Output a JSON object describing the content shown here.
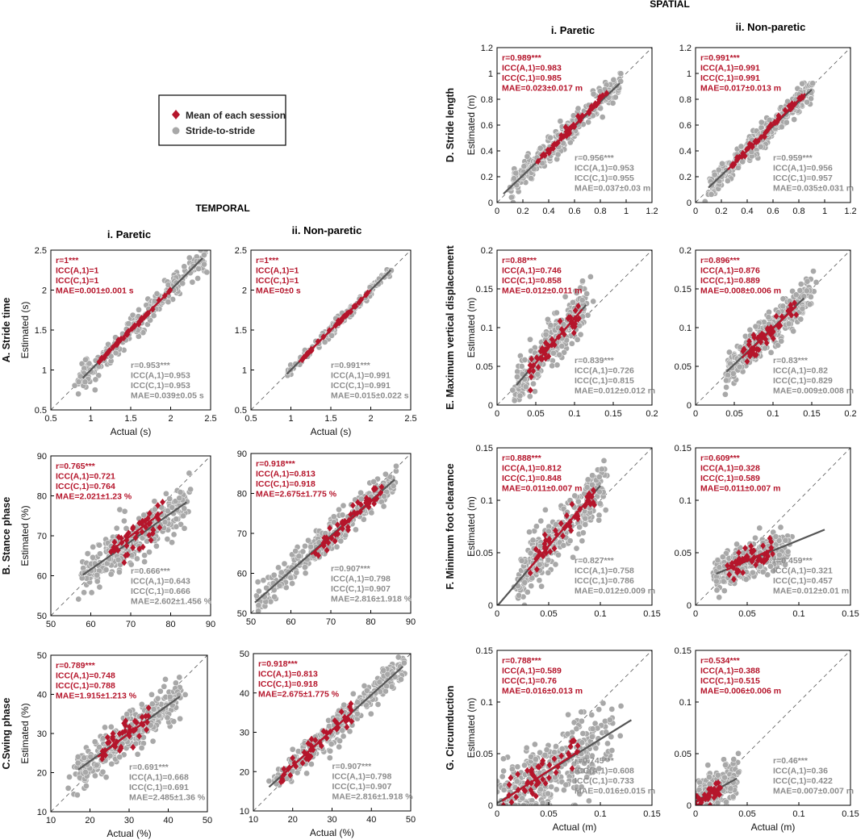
{
  "colors": {
    "mean": "#b5152b",
    "stride": "#a8a8a8",
    "stride_text": "#8c8c8c",
    "fit_line": "#555555",
    "identity": "#555555",
    "axis": "#000000"
  },
  "legend": {
    "mean_label": "Mean of each session",
    "stride_label": "Stride-to-stride"
  },
  "headers": {
    "temporal": "TEMPORAL",
    "spatial": "SPATIAL",
    "paretic": "i. Paretic",
    "non_paretic": "ii. Non-paretic"
  },
  "chart_data": [
    {
      "id": "A-paretic",
      "type": "scatter",
      "row_label": "A. Stride time",
      "xlabel": "Actual (s)",
      "ylabel": "Estimated (s)",
      "xlim": [
        0.5,
        2.5
      ],
      "ylim": [
        0.5,
        2.5
      ],
      "xticks": [
        "0.5",
        "1",
        "1.5",
        "2",
        "2.5"
      ],
      "yticks": [
        "0.5",
        "1",
        "1.5",
        "2",
        "2.5"
      ],
      "mean_stats": [
        "r=1***",
        "ICC(A,1)=1",
        "ICC(C,1)=1",
        "MAE=0.001±0.001 s"
      ],
      "stride_stats": [
        "r=0.953***",
        "ICC(A,1)=0.953",
        "ICC(C,1)=0.953",
        "MAE=0.039±0.05 s"
      ],
      "stride_fit": {
        "slope": 1.0,
        "intercept": 0.0,
        "x_range": [
          0.9,
          2.4
        ]
      },
      "mean_fit": {
        "slope": 1.0,
        "intercept": 0.0,
        "x_range": [
          1.1,
          2.0
        ]
      },
      "stride_cloud": {
        "x_range": [
          0.85,
          2.45
        ],
        "spread": 0.09,
        "n": 260
      },
      "mean_cloud": {
        "x_range": [
          1.1,
          2.0
        ],
        "spread": 0.01,
        "n": 45
      }
    },
    {
      "id": "A-nonparetic",
      "type": "scatter",
      "row_label": "",
      "xlabel": "Actual (s)",
      "ylabel": "",
      "xlim": [
        0.5,
        2.5
      ],
      "ylim": [
        0.5,
        2.5
      ],
      "xticks": [
        "0.5",
        "1",
        "1.5",
        "2",
        "2.5"
      ],
      "yticks": [
        "0.5",
        "1",
        "1.5",
        "2",
        "2.5"
      ],
      "mean_stats": [
        "r=1***",
        "ICC(A,1)=1",
        "ICC(C,1)=1",
        "MAE=0±0 s"
      ],
      "stride_stats": [
        "r=0.991***",
        "ICC(A,1)=0.991",
        "ICC(C,1)=0.991",
        "MAE=0.015±0.022 s"
      ],
      "stride_fit": {
        "slope": 1.0,
        "intercept": 0.0,
        "x_range": [
          0.95,
          2.25
        ]
      },
      "mean_fit": {
        "slope": 1.0,
        "intercept": 0.0,
        "x_range": [
          1.1,
          2.0
        ]
      },
      "stride_cloud": {
        "x_range": [
          0.95,
          2.25
        ],
        "spread": 0.04,
        "n": 140
      },
      "mean_cloud": {
        "x_range": [
          1.1,
          2.0
        ],
        "spread": 0.01,
        "n": 40
      }
    },
    {
      "id": "B-paretic",
      "type": "scatter",
      "row_label": "B. Stance phase",
      "xlabel": "",
      "ylabel": "Estimated (%)",
      "xlim": [
        50,
        90
      ],
      "ylim": [
        50,
        90
      ],
      "xticks": [
        "50",
        "60",
        "70",
        "80",
        "90"
      ],
      "yticks": [
        "50",
        "60",
        "70",
        "80",
        "90"
      ],
      "mean_stats": [
        "r=0.765***",
        "ICC(A,1)=0.721",
        "ICC(C,1)=0.764",
        "MAE=2.021±1.23 %"
      ],
      "stride_stats": [
        "r=0.666***",
        "ICC(A,1)=0.643",
        "ICC(C,1)=0.666",
        "MAE=2.602±1.456 %"
      ],
      "stride_fit": {
        "slope": 0.7,
        "intercept": 19.6,
        "x_range": [
          58,
          84
        ]
      },
      "mean_fit": {
        "slope": 0.75,
        "intercept": 17.5,
        "x_range": [
          65,
          78
        ]
      },
      "stride_cloud": {
        "x_range": [
          58,
          84
        ],
        "spread": 2.8,
        "n": 320
      },
      "mean_cloud": {
        "x_range": [
          65,
          78
        ],
        "spread": 2.0,
        "n": 45
      }
    },
    {
      "id": "B-nonparetic",
      "type": "scatter",
      "row_label": "",
      "xlabel": "",
      "ylabel": "",
      "xlim": [
        50,
        90
      ],
      "ylim": [
        50,
        90
      ],
      "xticks": [
        "50",
        "60",
        "70",
        "80",
        "90"
      ],
      "yticks": [
        "50",
        "60",
        "70",
        "80",
        "90"
      ],
      "mean_stats": [
        "r=0.918***",
        "ICC(A,1)=0.813",
        "ICC(C,1)=0.918",
        "MAE=2.675±1.775 %"
      ],
      "stride_stats": [
        "r=0.907***",
        "ICC(A,1)=0.798",
        "ICC(C,1)=0.907",
        "MAE=2.816±1.918 %"
      ],
      "stride_fit": {
        "slope": 0.88,
        "intercept": 7.8,
        "x_range": [
          51,
          86
        ]
      },
      "mean_fit": {
        "slope": 0.88,
        "intercept": 7.5,
        "x_range": [
          65,
          83
        ]
      },
      "stride_cloud": {
        "x_range": [
          52,
          86
        ],
        "spread": 2.2,
        "n": 300
      },
      "mean_cloud": {
        "x_range": [
          66,
          83
        ],
        "spread": 1.5,
        "n": 45
      }
    },
    {
      "id": "C-paretic",
      "type": "scatter",
      "row_label": "C.Swing phase",
      "xlabel": "Actual (%)",
      "ylabel": "Estimated (%)",
      "xlim": [
        10,
        50
      ],
      "ylim": [
        10,
        50
      ],
      "xticks": [
        "10",
        "20",
        "30",
        "40",
        "50"
      ],
      "yticks": [
        "10",
        "20",
        "30",
        "40",
        "50"
      ],
      "mean_stats": [
        "r=0.789***",
        "ICC(A,1)=0.748",
        "ICC(C,1)=0.788",
        "MAE=1.915±1.213 %"
      ],
      "stride_stats": [
        "r=0.691***",
        "ICC(A,1)=0.668",
        "ICC(C,1)=0.691",
        "MAE=2.485±1.36 %"
      ],
      "stride_fit": {
        "slope": 0.72,
        "intercept": 8.5,
        "x_range": [
          17,
          43
        ]
      },
      "mean_fit": {
        "slope": 0.75,
        "intercept": 7.5,
        "x_range": [
          22,
          34
        ]
      },
      "stride_cloud": {
        "x_range": [
          16,
          43
        ],
        "spread": 2.6,
        "n": 320
      },
      "mean_cloud": {
        "x_range": [
          22,
          35
        ],
        "spread": 2.0,
        "n": 45
      }
    },
    {
      "id": "C-nonparetic",
      "type": "scatter",
      "row_label": "",
      "xlabel": "Actual (%)",
      "ylabel": "",
      "xlim": [
        10,
        50
      ],
      "ylim": [
        10,
        50
      ],
      "xticks": [
        "10",
        "20",
        "30",
        "40",
        "50"
      ],
      "yticks": [
        "10",
        "20",
        "30",
        "40",
        "50"
      ],
      "mean_stats": [
        "r=0.918***",
        "ICC(A,1)=0.813",
        "ICC(C,1)=0.918",
        "MAE=2.675±1.775 %"
      ],
      "stride_stats": [
        "r=0.907***",
        "ICC(A,1)=0.798",
        "ICC(C,1)=0.907",
        "MAE=2.816±1.918 %"
      ],
      "stride_fit": {
        "slope": 0.9,
        "intercept": 3.5,
        "x_range": [
          14,
          48
        ]
      },
      "mean_fit": {
        "slope": 0.9,
        "intercept": 3.5,
        "x_range": [
          17,
          35
        ]
      },
      "stride_cloud": {
        "x_range": [
          15,
          48
        ],
        "spread": 2.0,
        "n": 300
      },
      "mean_cloud": {
        "x_range": [
          17,
          35
        ],
        "spread": 1.5,
        "n": 45
      }
    },
    {
      "id": "D-paretic",
      "type": "scatter",
      "row_label": "D. Stride length",
      "xlabel": "",
      "ylabel": "Estimated (m)",
      "xlim": [
        0,
        1.2
      ],
      "ylim": [
        0,
        1.2
      ],
      "xticks": [
        "0",
        "0.2",
        "0.4",
        "0.6",
        "0.8",
        "1",
        "1.2"
      ],
      "yticks": [
        "0",
        "0.2",
        "0.4",
        "0.6",
        "0.8",
        "1",
        "1.2"
      ],
      "mean_stats": [
        "r=0.989***",
        "ICC(A,1)=0.983",
        "ICC(C,1)=0.985",
        "MAE=0.023±0.017 m"
      ],
      "stride_stats": [
        "r=0.956***",
        "ICC(A,1)=0.953",
        "ICC(C,1)=0.955",
        "MAE=0.037±0.03 m"
      ],
      "stride_fit": {
        "slope": 0.95,
        "intercept": 0.02,
        "x_range": [
          0.05,
          0.95
        ]
      },
      "mean_fit": {
        "slope": 0.98,
        "intercept": 0.01,
        "x_range": [
          0.3,
          0.85
        ]
      },
      "stride_cloud": {
        "x_range": [
          0.1,
          0.95
        ],
        "spread": 0.05,
        "n": 320
      },
      "mean_cloud": {
        "x_range": [
          0.3,
          0.85
        ],
        "spread": 0.015,
        "n": 45
      }
    },
    {
      "id": "D-nonparetic",
      "type": "scatter",
      "row_label": "",
      "xlabel": "",
      "ylabel": "",
      "xlim": [
        0,
        1.2
      ],
      "ylim": [
        0,
        1.2
      ],
      "xticks": [
        "0",
        "0.2",
        "0.4",
        "0.6",
        "0.8",
        "1",
        "1.2"
      ],
      "yticks": [
        "0",
        "0.2",
        "0.4",
        "0.6",
        "0.8",
        "1",
        "1.2"
      ],
      "mean_stats": [
        "r=0.991***",
        "ICC(A,1)=0.991",
        "ICC(C,1)=0.991",
        "MAE=0.017±0.013 m"
      ],
      "stride_stats": [
        "r=0.959***",
        "ICC(A,1)=0.956",
        "ICC(C,1)=0.957",
        "MAE=0.035±0.031 m"
      ],
      "stride_fit": {
        "slope": 0.95,
        "intercept": 0.02,
        "x_range": [
          0.1,
          0.9
        ]
      },
      "mean_fit": {
        "slope": 0.98,
        "intercept": 0.01,
        "x_range": [
          0.25,
          0.85
        ]
      },
      "stride_cloud": {
        "x_range": [
          0.1,
          0.9
        ],
        "spread": 0.05,
        "n": 320
      },
      "mean_cloud": {
        "x_range": [
          0.25,
          0.85
        ],
        "spread": 0.015,
        "n": 45
      }
    },
    {
      "id": "E-paretic",
      "type": "scatter",
      "row_label": "E. Maximum vertical displacement",
      "xlabel": "",
      "ylabel": "Estimated (m)",
      "xlim": [
        0,
        0.2
      ],
      "ylim": [
        0,
        0.2
      ],
      "xticks": [
        "0",
        "0.05",
        "0.1",
        "0.15",
        "0.2"
      ],
      "yticks": [
        "0",
        "0.05",
        "0.1",
        "0.15",
        "0.2"
      ],
      "mean_stats": [
        "r=0.88***",
        "ICC(A,1)=0.746",
        "ICC(C,1)=0.858",
        "MAE=0.012±0.011 m"
      ],
      "stride_stats": [
        "r=0.839***",
        "ICC(A,1)=0.726",
        "ICC(C,1)=0.815",
        "MAE=0.012±0.012 m"
      ],
      "stride_fit": {
        "slope": 1.15,
        "intercept": -0.003,
        "x_range": [
          0.025,
          0.115
        ]
      },
      "mean_fit": {
        "slope": 1.15,
        "intercept": -0.003,
        "x_range": [
          0.04,
          0.11
        ]
      },
      "stride_cloud": {
        "x_range": [
          0.025,
          0.115
        ],
        "spread": 0.014,
        "n": 320
      },
      "mean_cloud": {
        "x_range": [
          0.04,
          0.11
        ],
        "spread": 0.008,
        "n": 45
      }
    },
    {
      "id": "E-nonparetic",
      "type": "scatter",
      "row_label": "",
      "xlabel": "",
      "ylabel": "",
      "xlim": [
        0,
        0.2
      ],
      "ylim": [
        0,
        0.2
      ],
      "xticks": [
        "0",
        "0.05",
        "0.1",
        "0.15",
        "0.2"
      ],
      "yticks": [
        "0",
        "0.05",
        "0.1",
        "0.15",
        "0.2"
      ],
      "mean_stats": [
        "r=0.896***",
        "ICC(A,1)=0.876",
        "ICC(C,1)=0.889",
        "MAE=0.008±0.006 m"
      ],
      "stride_stats": [
        "r=0.83***",
        "ICC(A,1)=0.82",
        "ICC(C,1)=0.829",
        "MAE=0.009±0.008 m"
      ],
      "stride_fit": {
        "slope": 0.95,
        "intercept": 0.005,
        "x_range": [
          0.04,
          0.14
        ]
      },
      "mean_fit": {
        "slope": 0.95,
        "intercept": 0.004,
        "x_range": [
          0.06,
          0.13
        ]
      },
      "stride_cloud": {
        "x_range": [
          0.04,
          0.15
        ],
        "spread": 0.012,
        "n": 320
      },
      "mean_cloud": {
        "x_range": [
          0.06,
          0.13
        ],
        "spread": 0.007,
        "n": 45
      }
    },
    {
      "id": "F-paretic",
      "type": "scatter",
      "row_label": "F.  Minimum foot clearance",
      "xlabel": "",
      "ylabel": "Estimated (m)",
      "xlim": [
        0,
        0.15
      ],
      "ylim": [
        0,
        0.15
      ],
      "xticks": [
        "0",
        "0.05",
        "0.1",
        "0.15"
      ],
      "yticks": [
        "0",
        "0.05",
        "0.1",
        "0.15"
      ],
      "mean_stats": [
        "r=0.888***",
        "ICC(A,1)=0.812",
        "ICC(C,1)=0.848",
        "MAE=0.011±0.007 m"
      ],
      "stride_stats": [
        "r=0.827***",
        "ICC(A,1)=0.758",
        "ICC(C,1)=0.786",
        "MAE=0.012±0.009 m"
      ],
      "stride_fit": {
        "slope": 1.15,
        "intercept": -0.001,
        "x_range": [
          0.0,
          0.1
        ]
      },
      "mean_fit": {
        "slope": 1.15,
        "intercept": -0.001,
        "x_range": [
          0.03,
          0.095
        ]
      },
      "stride_cloud": {
        "x_range": [
          0.02,
          0.1
        ],
        "spread": 0.013,
        "n": 320
      },
      "mean_cloud": {
        "x_range": [
          0.03,
          0.095
        ],
        "spread": 0.008,
        "n": 45
      }
    },
    {
      "id": "F-nonparetic",
      "type": "scatter",
      "row_label": "",
      "xlabel": "",
      "ylabel": "",
      "xlim": [
        0,
        0.15
      ],
      "ylim": [
        0,
        0.15
      ],
      "xticks": [
        "0",
        "0.05",
        "0.1",
        "0.15"
      ],
      "yticks": [
        "0",
        "0.05",
        "0.1",
        "0.15"
      ],
      "mean_stats": [
        "r=0.609***",
        "ICC(A,1)=0.328",
        "ICC(C,1)=0.589",
        "MAE=0.011±0.007 m"
      ],
      "stride_stats": [
        "r=0.459***",
        "ICC(A,1)=0.321",
        "ICC(C,1)=0.457",
        "MAE=0.012±0.01 m"
      ],
      "stride_fit": {
        "slope": 0.4,
        "intercept": 0.022,
        "x_range": [
          0.02,
          0.125
        ]
      },
      "mean_fit": {
        "slope": 0.45,
        "intercept": 0.02,
        "x_range": [
          0.03,
          0.075
        ]
      },
      "stride_cloud": {
        "x_range": [
          0.02,
          0.09
        ],
        "spread": 0.009,
        "n": 320
      },
      "mean_cloud": {
        "x_range": [
          0.03,
          0.075
        ],
        "spread": 0.006,
        "n": 45
      }
    },
    {
      "id": "G-paretic",
      "type": "scatter",
      "row_label": "G.  Circumduction",
      "xlabel": "Actual (m)",
      "ylabel": "Estimated (m)",
      "xlim": [
        0,
        0.15
      ],
      "ylim": [
        0,
        0.15
      ],
      "xticks": [
        "0",
        "0.05",
        "0.1",
        "0.15"
      ],
      "yticks": [
        "0",
        "0.05",
        "0.1",
        "0.15"
      ],
      "mean_stats": [
        "r=0.788***",
        "ICC(A,1)=0.589",
        "ICC(C,1)=0.76",
        "MAE=0.016±0.013 m"
      ],
      "stride_stats": [
        "r=0.745***",
        "ICC(A,1)=0.608",
        "ICC(C,1)=0.733",
        "MAE=0.016±0.015 m"
      ],
      "stride_fit": {
        "slope": 0.62,
        "intercept": 0.002,
        "x_range": [
          0.0,
          0.13
        ]
      },
      "mean_fit": {
        "slope": 0.65,
        "intercept": 0.001,
        "x_range": [
          0.005,
          0.08
        ]
      },
      "stride_cloud": {
        "x_range": [
          0.0,
          0.11
        ],
        "spread": 0.018,
        "n": 360
      },
      "mean_cloud": {
        "x_range": [
          0.005,
          0.08
        ],
        "spread": 0.01,
        "n": 45
      }
    },
    {
      "id": "G-nonparetic",
      "type": "scatter",
      "row_label": "",
      "xlabel": "Actual (m)",
      "ylabel": "",
      "xlim": [
        0,
        0.15
      ],
      "ylim": [
        0,
        0.15
      ],
      "xticks": [
        "0",
        "0.05",
        "0.1",
        "0.15"
      ],
      "yticks": [
        "0",
        "0.05",
        "0.1",
        "0.15"
      ],
      "mean_stats": [
        "r=0.534***",
        "ICC(A,1)=0.388",
        "ICC(C,1)=0.515",
        "MAE=0.006±0.006 m"
      ],
      "stride_stats": [
        "r=0.46***",
        "ICC(A,1)=0.36",
        "ICC(C,1)=0.422",
        "MAE=0.007±0.007 m"
      ],
      "stride_fit": {
        "slope": 0.55,
        "intercept": 0.004,
        "x_range": [
          0.0,
          0.04
        ]
      },
      "mean_fit": {
        "slope": 0.55,
        "intercept": 0.003,
        "x_range": [
          0.0,
          0.025
        ]
      },
      "stride_cloud": {
        "x_range": [
          0.0,
          0.04
        ],
        "spread": 0.01,
        "n": 220
      },
      "mean_cloud": {
        "x_range": [
          0.0,
          0.025
        ],
        "spread": 0.005,
        "n": 30
      }
    }
  ]
}
